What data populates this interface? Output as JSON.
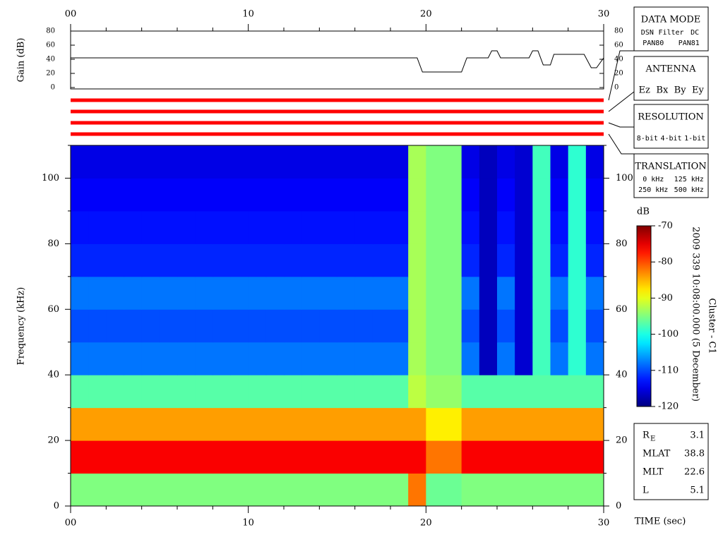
{
  "chart_data": [
    {
      "type": "line",
      "ylabel": "Gain (dB)",
      "x": [
        0,
        19.5,
        19.8,
        22,
        22.3,
        23.5,
        23.7,
        24,
        24.2,
        25.8,
        26,
        26.3,
        26.6,
        27,
        27.2,
        28.9,
        29.3,
        29.6,
        30
      ],
      "values": [
        42,
        42,
        22,
        22,
        42,
        42,
        52,
        52,
        42,
        42,
        52,
        52,
        32,
        32,
        47,
        47,
        28,
        28,
        42
      ],
      "color": "#000000",
      "xlim": [
        0,
        30
      ],
      "ylim": [
        0,
        80
      ],
      "yticks": [
        0,
        20,
        40,
        60,
        80
      ],
      "xticks": [
        {
          "value": 0,
          "label": "00"
        },
        10,
        20,
        30
      ],
      "xminorticks": [
        2,
        4,
        6,
        8,
        12,
        14,
        16,
        18,
        22,
        24,
        26,
        28
      ]
    },
    {
      "type": "heatmap",
      "ylabel": "Frequency (kHz)",
      "xlabel": "TIME (sec)",
      "x_edges": [
        0,
        1,
        2,
        3,
        4,
        5,
        6,
        7,
        8,
        9,
        10,
        11,
        12,
        13,
        14,
        15,
        16,
        17,
        18,
        19,
        20,
        21,
        22,
        23,
        24,
        25,
        26,
        27,
        28,
        29,
        30
      ],
      "y_edges": [
        0,
        10,
        20,
        30,
        40,
        50,
        60,
        70,
        80,
        90,
        100,
        110
      ],
      "z": [
        [
          -95,
          -95,
          -95,
          -95,
          -95,
          -95,
          -95,
          -95,
          -95,
          -95,
          -95,
          -95,
          -95,
          -95,
          -95,
          -95,
          -95,
          -95,
          -95,
          -82,
          -96,
          -96,
          -95,
          -95,
          -95,
          -95,
          -95,
          -95,
          -95,
          -95
        ],
        [
          -76,
          -76,
          -76,
          -76,
          -76,
          -76,
          -76,
          -76,
          -76,
          -76,
          -76,
          -76,
          -76,
          -76,
          -76,
          -76,
          -76,
          -76,
          -76,
          -76,
          -82,
          -82,
          -76,
          -76,
          -76,
          -76,
          -76,
          -76,
          -76,
          -76
        ],
        [
          -84,
          -84,
          -84,
          -84,
          -84,
          -84,
          -84,
          -84,
          -84,
          -84,
          -84,
          -84,
          -84,
          -84,
          -84,
          -84,
          -84,
          -84,
          -84,
          -84,
          -88,
          -88,
          -84,
          -84,
          -84,
          -84,
          -84,
          -84,
          -84,
          -84
        ],
        [
          -97,
          -97,
          -97,
          -97,
          -97,
          -97,
          -97,
          -97,
          -97,
          -97,
          -97,
          -97,
          -97,
          -97,
          -97,
          -97,
          -97,
          -97,
          -97,
          -92,
          -94,
          -94,
          -97,
          -97,
          -97,
          -97,
          -97,
          -97,
          -97,
          -97
        ],
        [
          -108,
          -108,
          -108,
          -108,
          -108,
          -108,
          -108,
          -108,
          -108,
          -108,
          -108,
          -108,
          -108,
          -108,
          -108,
          -108,
          -108,
          -108,
          -108,
          -93,
          -95,
          -95,
          -108,
          -117,
          -108,
          -116,
          -98,
          -108,
          -99,
          -108
        ],
        [
          -110,
          -110,
          -110,
          -110,
          -110,
          -110,
          -110,
          -110,
          -110,
          -110,
          -110,
          -110,
          -110,
          -110,
          -110,
          -110,
          -110,
          -110,
          -110,
          -93,
          -95,
          -95,
          -110,
          -117,
          -110,
          -116,
          -98,
          -110,
          -99,
          -110
        ],
        [
          -108,
          -108,
          -108,
          -108,
          -108,
          -108,
          -108,
          -108,
          -108,
          -108,
          -108,
          -108,
          -108,
          -108,
          -108,
          -108,
          -108,
          -108,
          -108,
          -93,
          -95,
          -95,
          -108,
          -117,
          -108,
          -116,
          -98,
          -108,
          -99,
          -108
        ],
        [
          -112,
          -112,
          -112,
          -112,
          -112,
          -112,
          -112,
          -112,
          -112,
          -112,
          -112,
          -112,
          -112,
          -112,
          -112,
          -112,
          -112,
          -112,
          -112,
          -93,
          -95,
          -95,
          -112,
          -117,
          -112,
          -116,
          -98,
          -112,
          -99,
          -112
        ],
        [
          -113,
          -113,
          -113,
          -113,
          -113,
          -113,
          -113,
          -113,
          -113,
          -113,
          -113,
          -113,
          -113,
          -113,
          -113,
          -113,
          -113,
          -113,
          -113,
          -93,
          -95,
          -95,
          -113,
          -117,
          -113,
          -116,
          -98,
          -113,
          -99,
          -113
        ],
        [
          -114,
          -114,
          -114,
          -114,
          -114,
          -114,
          -114,
          -114,
          -114,
          -114,
          -114,
          -114,
          -114,
          -114,
          -114,
          -114,
          -114,
          -114,
          -114,
          -93,
          -95,
          -95,
          -114,
          -117,
          -114,
          -116,
          -98,
          -114,
          -99,
          -114
        ],
        [
          -115,
          -115,
          -115,
          -115,
          -115,
          -115,
          -115,
          -115,
          -115,
          -115,
          -115,
          -115,
          -115,
          -115,
          -115,
          -115,
          -115,
          -115,
          -115,
          -93,
          -95,
          -95,
          -115,
          -117,
          -115,
          -116,
          -98,
          -115,
          -99,
          -115
        ]
      ],
      "xlim": [
        0,
        30
      ],
      "ylim": [
        0,
        110
      ],
      "xticks": [
        {
          "value": 0,
          "label": "00"
        },
        10,
        20,
        30
      ],
      "xminorticks": [
        2,
        4,
        6,
        8,
        12,
        14,
        16,
        18,
        22,
        24,
        26,
        28
      ],
      "yticks": [
        0,
        20,
        40,
        60,
        80,
        100
      ],
      "yminorticks": [
        10,
        30,
        50,
        70,
        90,
        110
      ],
      "colorbar": {
        "label": "dB",
        "colormap": "jet",
        "zlim": [
          -120,
          -70
        ],
        "ticks": [
          -70,
          -80,
          -90,
          -100,
          -110,
          -120
        ]
      }
    }
  ],
  "side_panels": [
    {
      "title": "DATA MODE",
      "items": [
        {
          "text": "DSN",
          "color": "#ff0000"
        },
        {
          "text": "Filter",
          "color": "#00c000"
        },
        {
          "text": "DC",
          "color": "#0000ff"
        },
        {
          "text": "PAN80",
          "color": "#000000"
        },
        {
          "text": "PAN81",
          "color": "#00c8c8"
        }
      ]
    },
    {
      "title": "ANTENNA",
      "items": [
        {
          "text": "Ez",
          "color": "#ff0000"
        },
        {
          "text": "Bx",
          "color": "#00c000"
        },
        {
          "text": "By",
          "color": "#0000ff"
        },
        {
          "text": "Ey",
          "color": "#000000"
        }
      ]
    },
    {
      "title": "RESOLUTION",
      "items": [
        {
          "text": "8-bit",
          "color": "#ff0000"
        },
        {
          "text": "4-bit",
          "color": "#00c000"
        },
        {
          "text": "1-bit",
          "color": "#0000ff"
        }
      ]
    },
    {
      "title": "TRANSLATION",
      "items": [
        {
          "text": "0 kHz",
          "color": "#ff0000"
        },
        {
          "text": "125 kHz",
          "color": "#00c000"
        },
        {
          "text": "250 kHz",
          "color": "#0000ff"
        },
        {
          "text": "500 kHz",
          "color": "#000000"
        }
      ]
    }
  ],
  "timestamp": "2009 339 10:08:00.000 (5 December)",
  "spacecraft": "Cluster - C1",
  "orbit": [
    {
      "label": "R",
      "subscript": "E",
      "value": 3.1
    },
    {
      "label": "MLAT",
      "value": 38.8
    },
    {
      "label": "MLT",
      "value": 22.6
    },
    {
      "label": "L",
      "value": 5.1
    }
  ]
}
